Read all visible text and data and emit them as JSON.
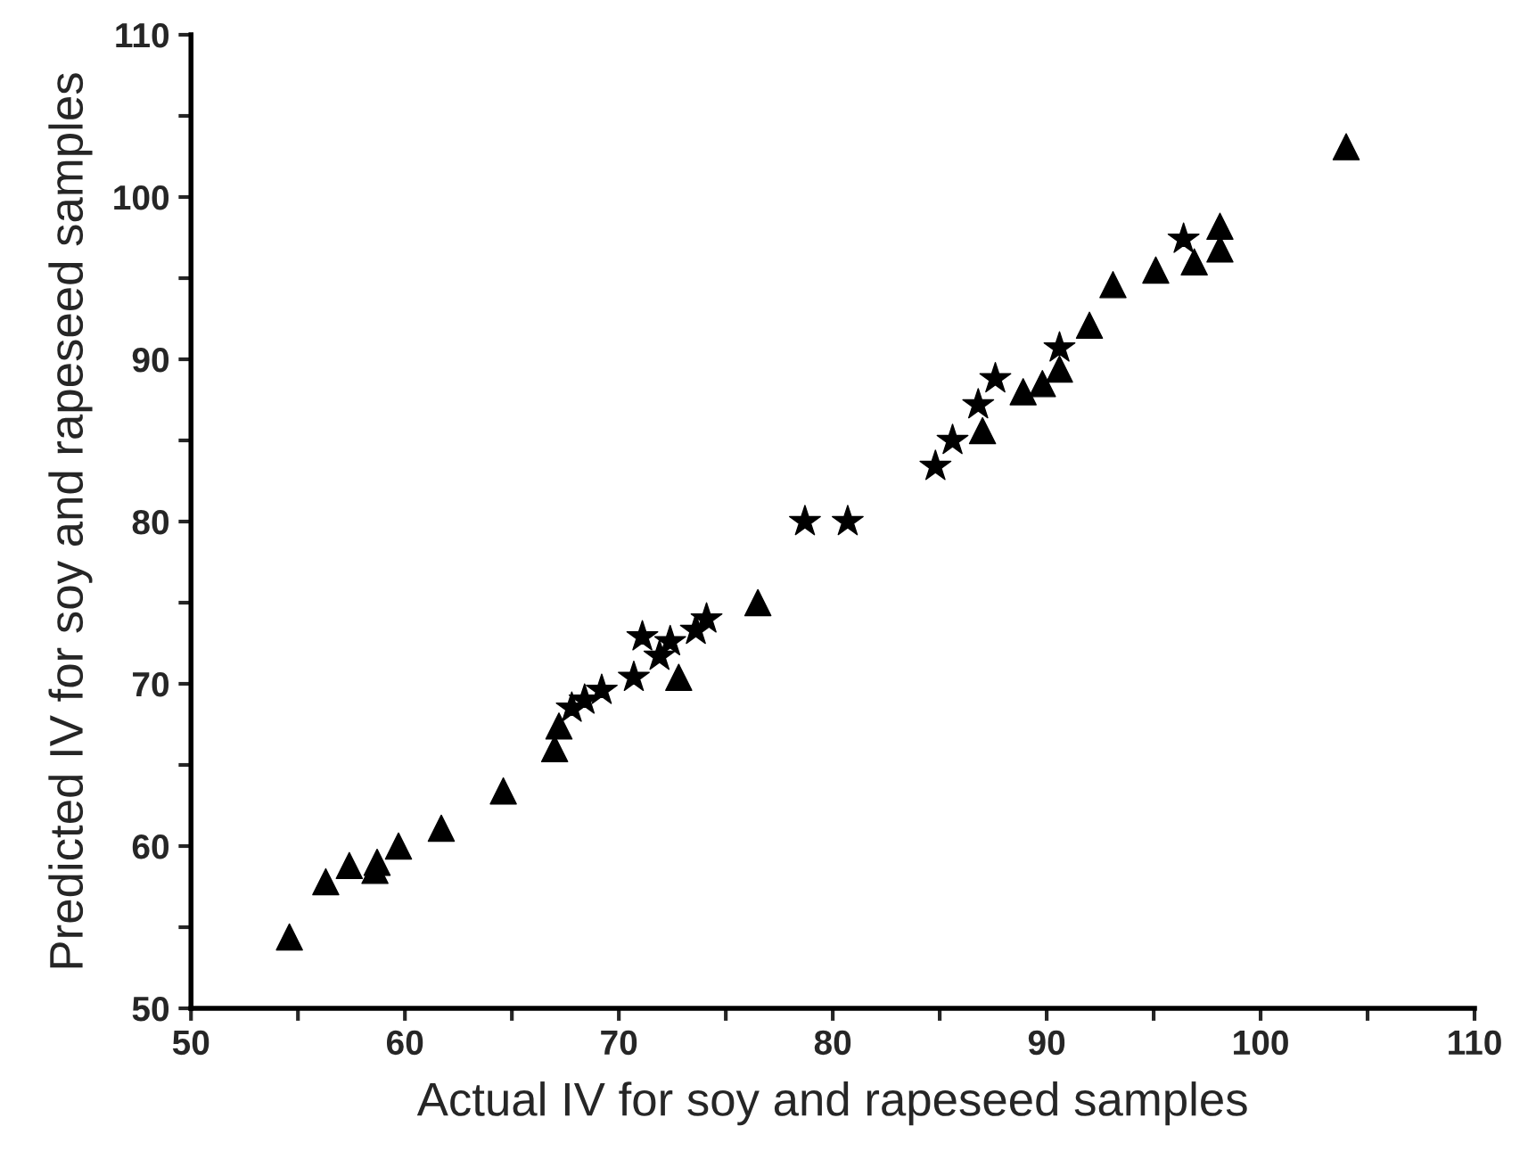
{
  "chart_data": {
    "type": "scatter",
    "xlabel": "Actual IV for soy and rapeseed samples",
    "ylabel": "Predicted IV for soy and rapeseed samples",
    "xlim": [
      50,
      110
    ],
    "ylim": [
      50,
      110
    ],
    "xticks": [
      50,
      {
        "value": 55,
        "label": null
      },
      60,
      {
        "value": 65,
        "label": null
      },
      70,
      {
        "value": 75,
        "label": null
      },
      80,
      {
        "value": 85,
        "label": null
      },
      90,
      {
        "value": 95,
        "label": null
      },
      100,
      {
        "value": 105,
        "label": null
      },
      110
    ],
    "yticks": [
      50,
      {
        "value": 55,
        "label": null
      },
      60,
      {
        "value": 65,
        "label": null
      },
      70,
      {
        "value": 75,
        "label": null
      },
      80,
      {
        "value": 85,
        "label": null
      },
      90,
      {
        "value": 95,
        "label": null
      },
      100,
      {
        "value": 105,
        "label": null
      },
      110
    ],
    "grid": false,
    "series": [
      {
        "color": "#000000",
        "marker": "triangle",
        "x": [
          54.6,
          56.3,
          57.4,
          58.6,
          58.7,
          59.7,
          61.7,
          64.6,
          67.0,
          67.2,
          72.8,
          76.5,
          87.0,
          88.9,
          89.8,
          90.6,
          92.0,
          93.1,
          95.1,
          96.9,
          98.1,
          98.1,
          104.0
        ],
        "values": [
          54.4,
          57.8,
          58.8,
          58.5,
          59.0,
          60.0,
          61.1,
          63.4,
          66.0,
          67.4,
          70.4,
          75.0,
          85.6,
          88.0,
          88.5,
          89.4,
          92.1,
          94.6,
          95.5,
          96.0,
          98.2,
          96.8,
          103.1
        ]
      },
      {
        "color": "#000000",
        "marker": "star",
        "x": [
          67.8,
          68.4,
          69.2,
          70.7,
          71.1,
          72.4,
          71.9,
          73.6,
          74.1,
          78.7,
          80.7,
          84.8,
          85.6,
          86.8,
          87.6,
          90.6,
          96.4
        ],
        "values": [
          68.5,
          69.0,
          69.6,
          70.4,
          72.9,
          72.6,
          71.7,
          73.3,
          74.0,
          80.0,
          80.0,
          83.4,
          85.0,
          87.2,
          88.8,
          90.7,
          97.4
        ]
      }
    ]
  }
}
